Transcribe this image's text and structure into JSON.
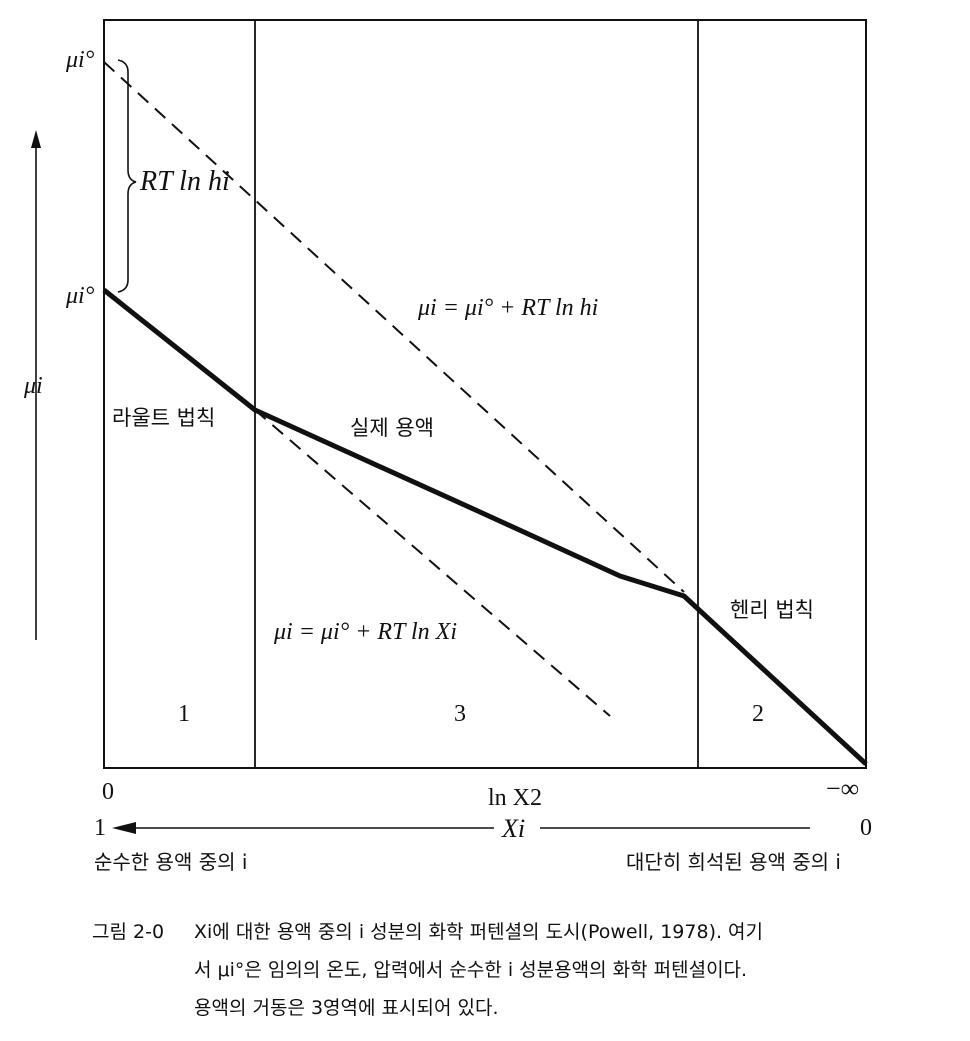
{
  "diagram": {
    "left_mu_top": "μi°",
    "left_mu_bottom": "μi°",
    "y_axis_label": "μi",
    "brace_label": "RT ln hi",
    "henry_line_eq": "μi = μi° + RT ln hi",
    "raoult_line_eq": "μi = μi° + RT ln Xi",
    "raoult_law": "라울트 법칙",
    "real_solution": "실제 용액",
    "henry_law": "헨리 법칙",
    "region_1": "1",
    "region_3": "3",
    "region_2": "2",
    "tick_zero": "0",
    "tick_minus_inf": "−∞",
    "x_axis_lnx2": "ln X2",
    "x_axis_xi": "Xi",
    "xi_left": "1",
    "xi_right": "0",
    "left_caption": "순수한 용액 중의 i",
    "right_caption": "대단히 희석된 용액 중의 i"
  },
  "caption": {
    "label": "그림 2-0",
    "line1": "Xi에 대한 용액 중의 i 성분의 화학 퍼텐셜의 도시(Powell, 1978). 여기",
    "line2": "서 μi°은 임의의 온도, 압력에서 순수한 i 성분용액의 화학 퍼텐셜이다.",
    "line3": "용액의 거동은 3영역에 표시되어 있다."
  }
}
